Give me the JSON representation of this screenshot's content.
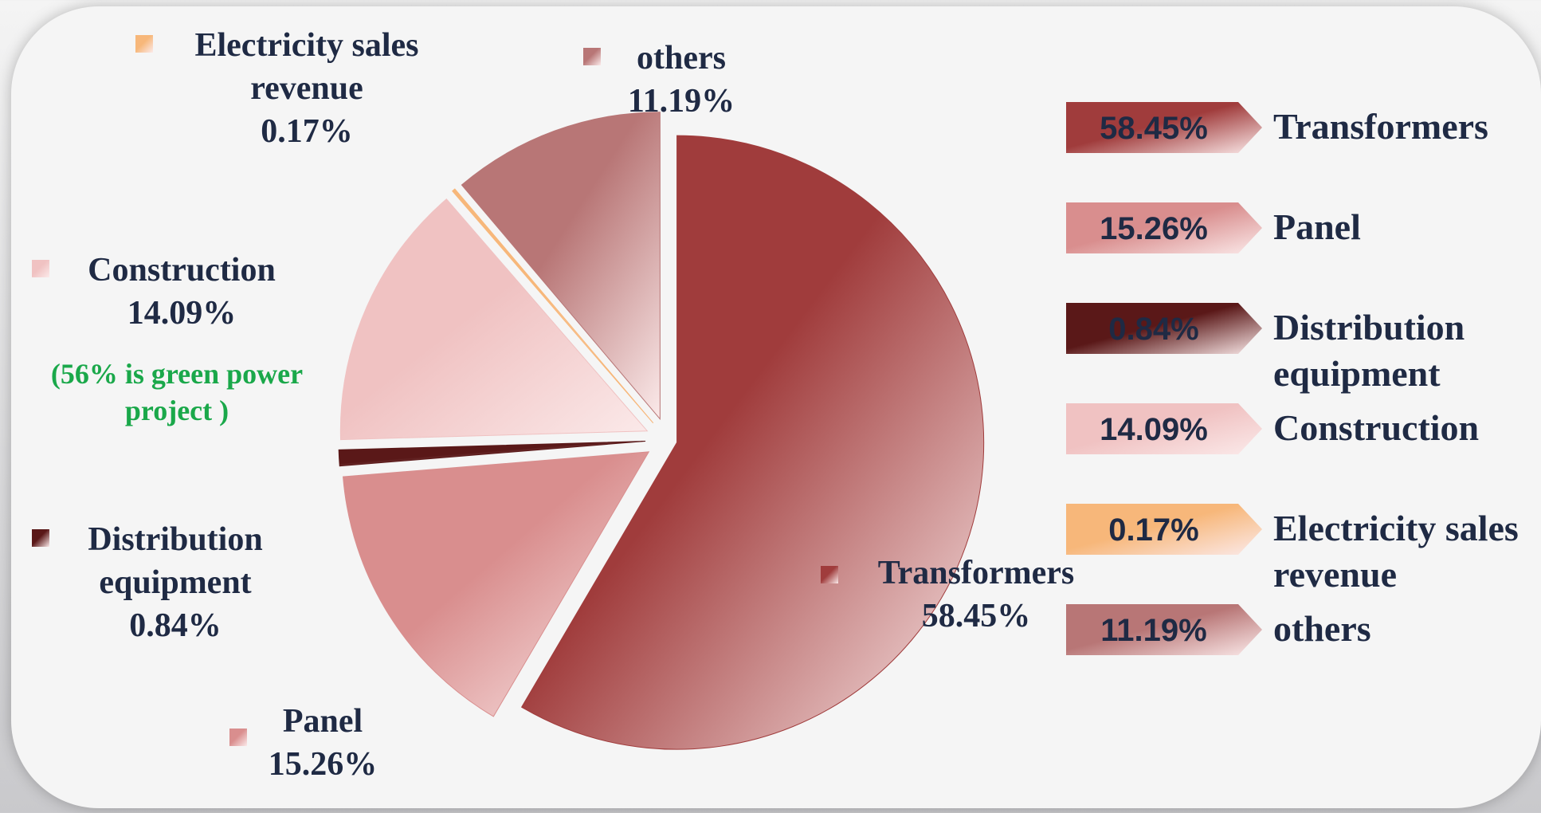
{
  "chart_data": {
    "type": "pie",
    "categories": [
      "Transformers",
      "Panel",
      "Distribution equipment",
      "Construction",
      "Electricity sales revenue",
      "others"
    ],
    "values": [
      58.45,
      15.26,
      0.84,
      14.09,
      0.17,
      11.19
    ],
    "value_labels": [
      "58.45%",
      "15.26%",
      "0.84%",
      "14.09%",
      "0.17%",
      "11.19%"
    ],
    "colors": [
      "#a03c3c",
      "#d98e8e",
      "#5a1818",
      "#f0c2c2",
      "#f7b77a",
      "#b87676"
    ],
    "annotation": "(56% is green power project )",
    "legend": "right"
  }
}
